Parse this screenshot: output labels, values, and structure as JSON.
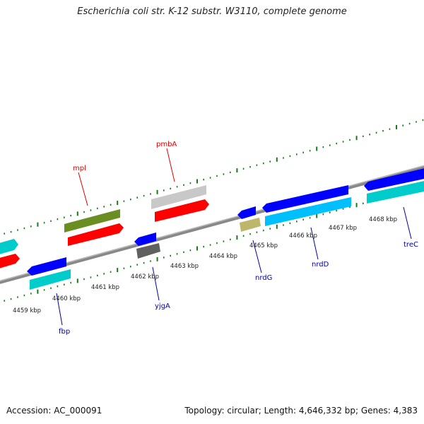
{
  "title": "Escherichia coli str. K-12 substr. W3110, complete genome",
  "accession": "Accession: AC_000091",
  "topology": "Topology: circular; Length: 4,646,332 bp; Genes: 4,383",
  "kbp_labels": [
    {
      "text": "4459 kbp",
      "t": -30
    },
    {
      "text": "4460 kbp",
      "t": 64
    },
    {
      "text": "4461 kbp",
      "t": 137
    },
    {
      "text": "4462 kbp",
      "t": 212
    },
    {
      "text": "4463 kbp",
      "t": 285
    },
    {
      "text": "4464 kbp",
      "t": 360
    },
    {
      "text": "4465 kbp",
      "t": 432
    },
    {
      "text": "4466 kbp",
      "t": 506
    },
    {
      "text": "4467 kbp",
      "t": 582
    },
    {
      "text": "4468 kbp",
      "t": 660
    }
  ],
  "genes": [
    {
      "name": "mpl",
      "strand": "top",
      "t0": 112,
      "t1": 195,
      "color": "#6b8e23"
    },
    {
      "name": "",
      "strand": "top",
      "t0": 112,
      "t1": 195,
      "color": "#ff0000",
      "row": 2
    },
    {
      "name": "pmbA",
      "strand": "top",
      "t0": 236,
      "t1": 318,
      "color": "#c0c0c0"
    },
    {
      "name": "",
      "strand": "top",
      "t0": 236,
      "t1": 318,
      "color": "#ff0000",
      "row": 2
    },
    {
      "name": "nrdG",
      "strand": "bottom",
      "t0": 356,
      "t1": 382,
      "color": "#0000ff",
      "row": 1
    },
    {
      "name": "",
      "strand": "bottom",
      "t0": 356,
      "t1": 382,
      "color": "#bdb76b",
      "row": 2
    },
    {
      "name": "nrdD",
      "strand": "bottom",
      "t0": 392,
      "t1": 520,
      "color": "#0000ff",
      "row": 1
    },
    {
      "name": "",
      "strand": "bottom",
      "t0": 392,
      "t1": 520,
      "color": "#00bfff",
      "row": 2
    },
    {
      "name": "treC",
      "strand": "bottom",
      "t0": 536,
      "t1": 610,
      "color": "#0000ff",
      "row": 1
    },
    {
      "name": "",
      "strand": "bottom",
      "t0": 536,
      "t1": 610,
      "color": "#00cccc",
      "row": 2
    },
    {
      "name": "yjgA",
      "strand": "bottom",
      "t0": 212,
      "t1": 238,
      "color": "#0000ff",
      "row": 1
    },
    {
      "name": "",
      "strand": "bottom",
      "t0": 212,
      "t1": 238,
      "color": "#606060",
      "row": 2
    },
    {
      "name": "fbp",
      "strand": "bottom",
      "t0": 60,
      "t1": 112,
      "color": "#0000ff",
      "row": 1
    },
    {
      "name": "",
      "strand": "bottom",
      "t0": 60,
      "t1": 112,
      "color": "#00cccc",
      "row": 2
    }
  ]
}
